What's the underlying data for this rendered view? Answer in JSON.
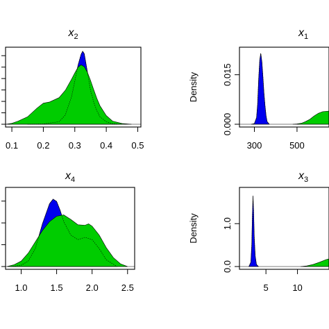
{
  "chart_data": [
    {
      "type": "area",
      "title": "x",
      "title_sub": "2",
      "ylabel": "",
      "x_ticks": [
        "0.1",
        "0.2",
        "0.3",
        "0.4",
        "0.5"
      ],
      "x_tick_values": [
        0.1,
        0.2,
        0.3,
        0.4,
        0.5
      ],
      "y_ticks": [],
      "xlim": [
        0.08,
        0.51
      ],
      "ylim": [
        0,
        12
      ],
      "grid": false,
      "series": [
        {
          "color": "#0000ee",
          "x": [
            0.15,
            0.2,
            0.25,
            0.27,
            0.29,
            0.3,
            0.31,
            0.32,
            0.325,
            0.33,
            0.335,
            0.34,
            0.35,
            0.36,
            0.37,
            0.38,
            0.4,
            0.42,
            0.45
          ],
          "y": [
            0,
            0.05,
            0.4,
            1.5,
            4.5,
            7,
            9.5,
            11.3,
            11.8,
            11.4,
            10,
            8.5,
            5.5,
            3.6,
            2.2,
            1.2,
            0.4,
            0.1,
            0
          ]
        },
        {
          "color": "#00cc00",
          "x": [
            0.08,
            0.1,
            0.12,
            0.15,
            0.18,
            0.2,
            0.22,
            0.25,
            0.27,
            0.29,
            0.3,
            0.31,
            0.32,
            0.33,
            0.34,
            0.35,
            0.36,
            0.37,
            0.38,
            0.4,
            0.42,
            0.45,
            0.48
          ],
          "y": [
            0,
            0.15,
            0.5,
            1.2,
            2.6,
            3.4,
            3.6,
            4.3,
            5.5,
            7.3,
            8.3,
            9.2,
            9.6,
            9.3,
            8.4,
            7.1,
            5.6,
            4.2,
            3.0,
            1.4,
            0.5,
            0.12,
            0
          ]
        }
      ]
    },
    {
      "type": "area",
      "title": "x",
      "title_sub": "1",
      "ylabel": "Density",
      "x_ticks": [
        "300",
        "500"
      ],
      "x_tick_values": [
        300,
        500
      ],
      "y_ticks": [
        "0.000",
        "0.015"
      ],
      "y_tick_values": [
        0,
        0.015
      ],
      "xlim": [
        230,
        650
      ],
      "ylim": [
        0,
        0.0225
      ],
      "grid": false,
      "series": [
        {
          "color": "#0000ee",
          "x": [
            285,
            300,
            310,
            315,
            320,
            325,
            330,
            335,
            340,
            345,
            350,
            355,
            360,
            370
          ],
          "y": [
            0,
            0.0002,
            0.002,
            0.006,
            0.0135,
            0.0195,
            0.0215,
            0.019,
            0.0145,
            0.0095,
            0.0055,
            0.0025,
            0.0008,
            0
          ]
        },
        {
          "color": "#00cc00",
          "x": [
            480,
            500,
            520,
            540,
            560,
            580,
            600,
            620,
            650
          ],
          "y": [
            0,
            0.0001,
            0.0003,
            0.0008,
            0.0015,
            0.0025,
            0.0033,
            0.0038,
            0.004
          ]
        }
      ]
    },
    {
      "type": "area",
      "title": "x",
      "title_sub": "4",
      "ylabel": "",
      "x_ticks": [
        "1.0",
        "1.5",
        "2.0",
        "2.5"
      ],
      "x_tick_values": [
        1.0,
        1.5,
        2.0,
        2.5
      ],
      "y_ticks": [],
      "xlim": [
        0.78,
        2.6
      ],
      "ylim": [
        0,
        1.7
      ],
      "grid": false,
      "series": [
        {
          "color": "#0000ee",
          "x": [
            0.85,
            1.0,
            1.1,
            1.2,
            1.3,
            1.4,
            1.45,
            1.5,
            1.55,
            1.6,
            1.7,
            1.8,
            1.9,
            2.0,
            2.1,
            2.2,
            2.35
          ],
          "y": [
            0,
            0.03,
            0.12,
            0.4,
            0.95,
            1.4,
            1.5,
            1.45,
            1.25,
            1.0,
            0.7,
            0.6,
            0.65,
            0.6,
            0.4,
            0.15,
            0
          ]
        },
        {
          "color": "#00cc00",
          "x": [
            0.8,
            0.9,
            1.0,
            1.1,
            1.2,
            1.3,
            1.4,
            1.5,
            1.6,
            1.7,
            1.8,
            1.9,
            1.95,
            2.0,
            2.1,
            2.2,
            2.3,
            2.4,
            2.5
          ],
          "y": [
            0,
            0.04,
            0.12,
            0.3,
            0.55,
            0.8,
            1.0,
            1.12,
            1.15,
            1.05,
            0.93,
            0.92,
            0.95,
            0.9,
            0.7,
            0.42,
            0.2,
            0.06,
            0
          ]
        }
      ]
    },
    {
      "type": "area",
      "title": "x",
      "title_sub": "3",
      "ylabel": "Density",
      "x_ticks": [
        "5",
        "10"
      ],
      "x_tick_values": [
        5,
        10
      ],
      "y_ticks": [
        "0.0",
        "1.0"
      ],
      "y_tick_values": [
        0,
        1.0
      ],
      "xlim": [
        0.8,
        15
      ],
      "ylim": [
        0,
        1.78
      ],
      "grid": false,
      "series": [
        {
          "color": "#0000ee",
          "x": [
            2.3,
            2.6,
            2.75,
            2.85,
            2.95,
            3.05,
            3.15,
            3.3,
            3.5,
            3.8
          ],
          "y": [
            0,
            0.1,
            0.5,
            1.2,
            1.65,
            1.3,
            0.7,
            0.25,
            0.05,
            0
          ]
        },
        {
          "color": "#00cc00",
          "x": [
            10.5,
            11.5,
            12.5,
            13.5,
            14.5,
            15
          ],
          "y": [
            0,
            0.015,
            0.05,
            0.1,
            0.16,
            0.18
          ]
        }
      ]
    }
  ]
}
